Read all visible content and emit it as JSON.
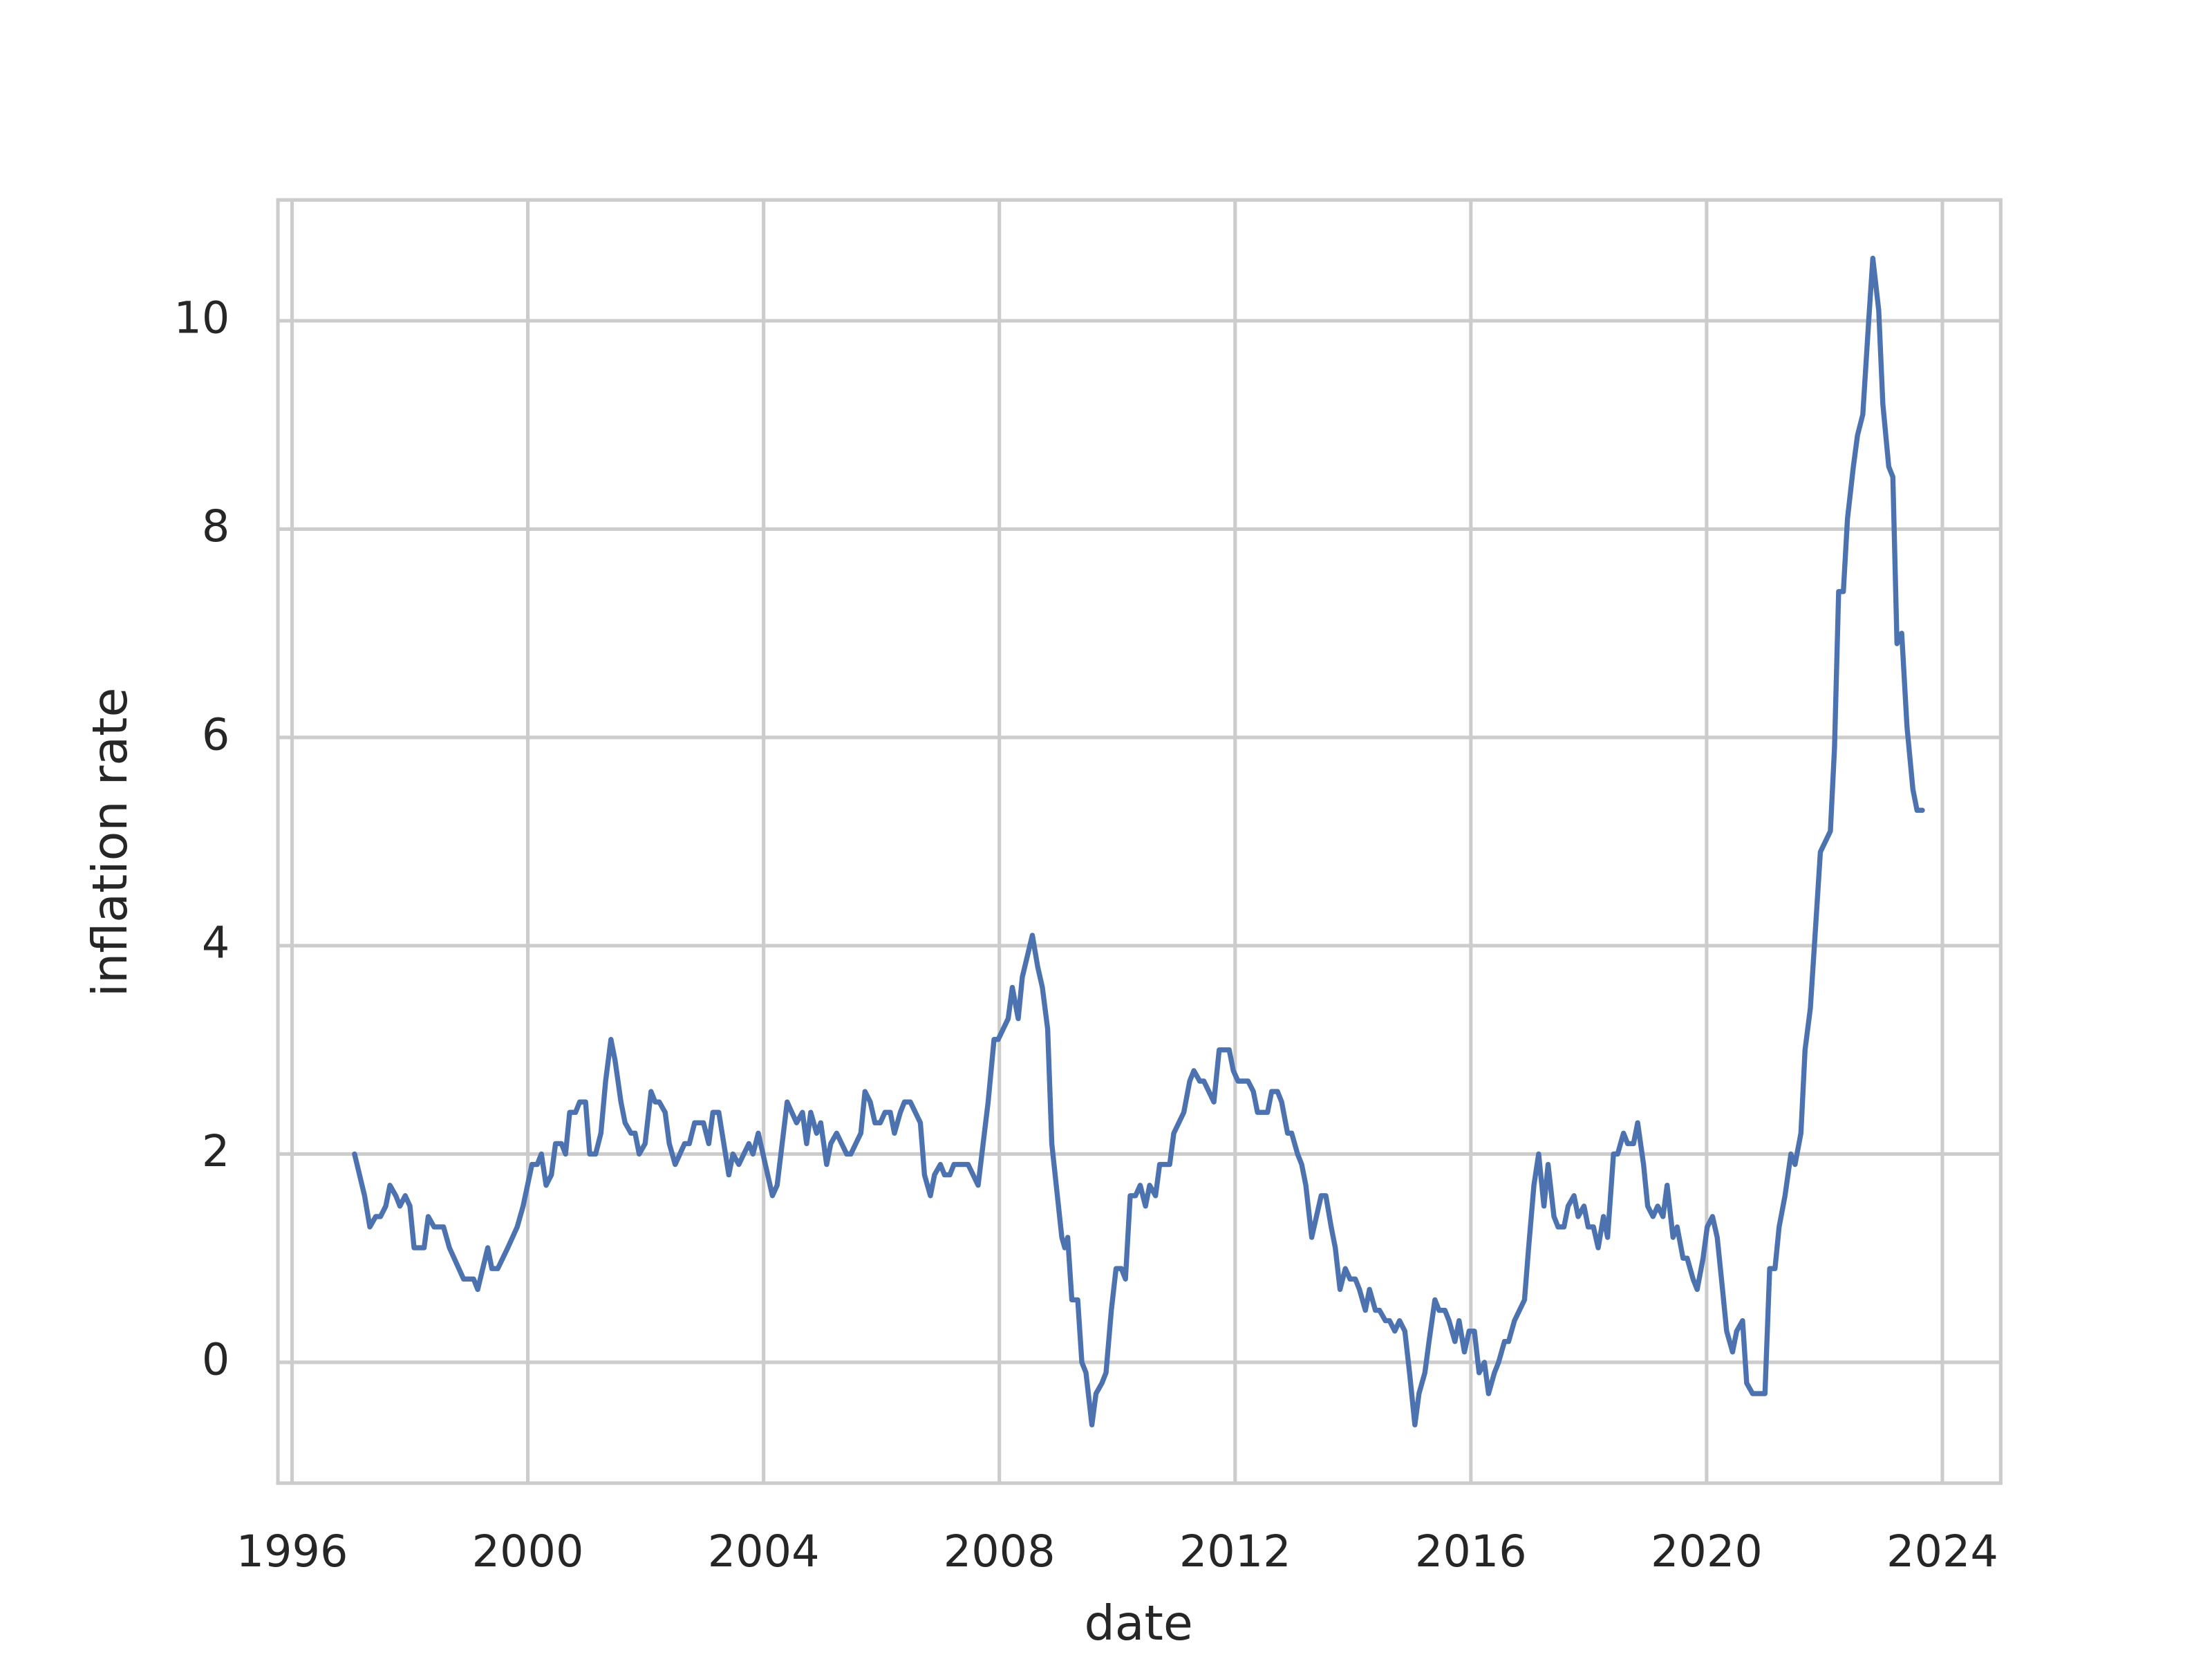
{
  "chart_data": {
    "type": "line",
    "x_label": "date",
    "y_label": "inflation rate",
    "color": "#4c72b0",
    "grid": true,
    "xlim": [
      1995.76,
      2024.99
    ],
    "ylim": [
      -1.16,
      11.16
    ],
    "xticks": [
      1996,
      2000,
      2004,
      2008,
      2012,
      2016,
      2020,
      2024
    ],
    "yticks": [
      0,
      2,
      4,
      6,
      8,
      10
    ],
    "x": [
      1997.06,
      1997.23,
      1997.32,
      1997.42,
      1997.5,
      1997.59,
      1997.66,
      1997.76,
      1997.83,
      1997.92,
      1998.0,
      1998.07,
      1998.24,
      1998.31,
      1998.41,
      1998.57,
      1998.67,
      1998.91,
      1999.08,
      1999.15,
      1999.32,
      1999.39,
      1999.49,
      1999.66,
      1999.82,
      1999.92,
      2000.07,
      2000.16,
      2000.23,
      2000.31,
      2000.4,
      2000.47,
      2000.57,
      2000.64,
      2000.71,
      2000.81,
      2000.88,
      2000.98,
      2001.05,
      2001.15,
      2001.24,
      2001.32,
      2001.41,
      2001.48,
      2001.58,
      2001.65,
      2001.75,
      2001.82,
      2001.89,
      2001.99,
      2002.09,
      2002.16,
      2002.23,
      2002.33,
      2002.4,
      2002.5,
      2002.66,
      2002.74,
      2002.83,
      2002.98,
      2003.07,
      2003.14,
      2003.24,
      2003.41,
      2003.48,
      2003.58,
      2003.75,
      2003.82,
      2003.91,
      2004.15,
      2004.23,
      2004.4,
      2004.56,
      2004.66,
      2004.73,
      2004.8,
      2004.9,
      2004.97,
      2005.07,
      2005.14,
      2005.24,
      2005.41,
      2005.48,
      2005.65,
      2005.72,
      2005.81,
      2005.89,
      2005.98,
      2006.06,
      2006.15,
      2006.22,
      2006.32,
      2006.39,
      2006.49,
      2006.66,
      2006.73,
      2006.83,
      2006.9,
      2007.0,
      2007.07,
      2007.16,
      2007.23,
      2007.47,
      2007.64,
      2007.81,
      2007.91,
      2007.98,
      2008.15,
      2008.22,
      2008.32,
      2008.39,
      2008.56,
      2008.65,
      2008.73,
      2008.82,
      2008.89,
      2009.06,
      2009.11,
      2009.16,
      2009.23,
      2009.33,
      2009.4,
      2009.47,
      2009.57,
      2009.64,
      2009.74,
      2009.81,
      2009.9,
      2009.98,
      2010.07,
      2010.14,
      2010.22,
      2010.31,
      2010.39,
      2010.48,
      2010.55,
      2010.65,
      2010.72,
      2010.89,
      2010.96,
      2011.13,
      2011.23,
      2011.3,
      2011.4,
      2011.47,
      2011.64,
      2011.73,
      2011.9,
      2011.97,
      2012.05,
      2012.22,
      2012.31,
      2012.38,
      2012.55,
      2012.62,
      2012.72,
      2012.79,
      2012.89,
      2012.96,
      2013.06,
      2013.13,
      2013.2,
      2013.3,
      2013.46,
      2013.54,
      2013.63,
      2013.7,
      2013.78,
      2013.87,
      2013.95,
      2014.04,
      2014.11,
      2014.21,
      2014.28,
      2014.38,
      2014.45,
      2014.55,
      2014.62,
      2014.71,
      2014.79,
      2014.88,
      2014.96,
      2015.05,
      2015.12,
      2015.22,
      2015.29,
      2015.39,
      2015.46,
      2015.56,
      2015.63,
      2015.73,
      2015.8,
      2015.89,
      2015.97,
      2016.06,
      2016.14,
      2016.23,
      2016.3,
      2016.4,
      2016.47,
      2016.57,
      2016.64,
      2016.74,
      2016.91,
      2016.98,
      2017.07,
      2017.15,
      2017.24,
      2017.31,
      2017.41,
      2017.48,
      2017.58,
      2017.65,
      2017.75,
      2017.82,
      2017.92,
      2017.99,
      2018.08,
      2018.16,
      2018.25,
      2018.32,
      2018.42,
      2018.49,
      2018.59,
      2018.66,
      2018.76,
      2018.83,
      2018.93,
      2019.0,
      2019.09,
      2019.17,
      2019.26,
      2019.33,
      2019.43,
      2019.5,
      2019.6,
      2019.67,
      2019.77,
      2019.84,
      2019.94,
      2020.01,
      2020.1,
      2020.18,
      2020.27,
      2020.34,
      2020.44,
      2020.51,
      2020.61,
      2020.68,
      2020.78,
      2020.99,
      2021.07,
      2021.16,
      2021.23,
      2021.33,
      2021.43,
      2021.5,
      2021.6,
      2021.67,
      2021.76,
      2021.84,
      2021.93,
      2022.1,
      2022.17,
      2022.24,
      2022.32,
      2022.39,
      2022.49,
      2022.56,
      2022.65,
      2022.75,
      2022.82,
      2022.92,
      2022.99,
      2023.09,
      2023.16,
      2023.23,
      2023.31,
      2023.4,
      2023.5,
      2023.57,
      2023.66
    ],
    "values": [
      2.0,
      1.6,
      1.3,
      1.4,
      1.4,
      1.5,
      1.7,
      1.6,
      1.5,
      1.6,
      1.5,
      1.1,
      1.1,
      1.4,
      1.3,
      1.3,
      1.1,
      0.8,
      0.8,
      0.7,
      1.1,
      0.9,
      0.9,
      1.1,
      1.3,
      1.5,
      1.9,
      1.9,
      2.0,
      1.7,
      1.8,
      2.1,
      2.1,
      2.0,
      2.4,
      2.4,
      2.5,
      2.5,
      2.0,
      2.0,
      2.2,
      2.7,
      3.1,
      2.9,
      2.5,
      2.3,
      2.2,
      2.2,
      2.0,
      2.1,
      2.6,
      2.5,
      2.5,
      2.4,
      2.1,
      1.9,
      2.1,
      2.1,
      2.3,
      2.3,
      2.1,
      2.4,
      2.4,
      1.8,
      2.0,
      1.9,
      2.1,
      2.0,
      2.2,
      1.6,
      1.7,
      2.5,
      2.3,
      2.4,
      2.1,
      2.4,
      2.2,
      2.3,
      1.9,
      2.1,
      2.2,
      2.0,
      2.0,
      2.2,
      2.6,
      2.5,
      2.3,
      2.3,
      2.4,
      2.4,
      2.2,
      2.4,
      2.5,
      2.5,
      2.3,
      1.8,
      1.6,
      1.8,
      1.9,
      1.8,
      1.8,
      1.9,
      1.9,
      1.7,
      2.5,
      3.1,
      3.1,
      3.3,
      3.6,
      3.3,
      3.7,
      4.1,
      3.8,
      3.6,
      3.2,
      2.1,
      1.2,
      1.1,
      1.2,
      0.6,
      0.6,
      0.0,
      -0.1,
      -0.6,
      -0.3,
      -0.2,
      -0.1,
      0.5,
      0.9,
      0.9,
      0.8,
      1.6,
      1.6,
      1.7,
      1.5,
      1.7,
      1.6,
      1.9,
      1.9,
      2.2,
      2.4,
      2.7,
      2.8,
      2.7,
      2.7,
      2.5,
      3.0,
      3.0,
      2.8,
      2.7,
      2.7,
      2.6,
      2.4,
      2.4,
      2.6,
      2.6,
      2.5,
      2.2,
      2.2,
      2.0,
      1.9,
      1.7,
      1.2,
      1.6,
      1.6,
      1.3,
      1.1,
      0.7,
      0.9,
      0.8,
      0.8,
      0.7,
      0.5,
      0.7,
      0.5,
      0.5,
      0.4,
      0.4,
      0.3,
      0.4,
      0.3,
      -0.1,
      -0.6,
      -0.3,
      -0.1,
      0.2,
      0.6,
      0.5,
      0.5,
      0.4,
      0.2,
      0.4,
      0.1,
      0.3,
      0.3,
      -0.1,
      0.0,
      -0.3,
      -0.1,
      0.0,
      0.2,
      0.2,
      0.4,
      0.6,
      1.1,
      1.7,
      2.0,
      1.5,
      1.9,
      1.4,
      1.3,
      1.3,
      1.5,
      1.6,
      1.4,
      1.5,
      1.3,
      1.3,
      1.1,
      1.4,
      1.2,
      2.0,
      2.0,
      2.2,
      2.1,
      2.1,
      2.3,
      1.9,
      1.5,
      1.4,
      1.5,
      1.4,
      1.7,
      1.2,
      1.3,
      1.0,
      1.0,
      0.8,
      0.7,
      1.0,
      1.3,
      1.4,
      1.2,
      0.7,
      0.3,
      0.1,
      0.3,
      0.4,
      -0.2,
      -0.3,
      -0.3,
      0.9,
      0.9,
      1.3,
      1.6,
      2.0,
      1.9,
      2.2,
      3.0,
      3.4,
      4.1,
      4.9,
      5.1,
      5.9,
      7.4,
      7.4,
      8.1,
      8.6,
      8.9,
      9.1,
      10.0,
      10.6,
      10.1,
      9.2,
      8.6,
      8.5,
      6.9,
      7.0,
      6.1,
      5.5,
      5.3,
      5.3
    ]
  }
}
